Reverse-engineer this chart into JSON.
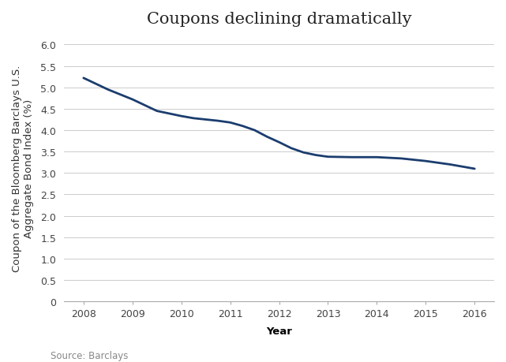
{
  "title": "Coupons declining dramatically",
  "xlabel": "Year",
  "ylabel": "Coupon of the Bloomberg Barclays U.S.\nAggregate Bond Index (%)",
  "source_text": "Source: Barclays",
  "x": [
    2008,
    2008.5,
    2009,
    2009.5,
    2010,
    2010.25,
    2010.5,
    2010.75,
    2011,
    2011.25,
    2011.5,
    2011.75,
    2012,
    2012.25,
    2012.5,
    2012.75,
    2013,
    2013.5,
    2014,
    2014.5,
    2015,
    2015.5,
    2016
  ],
  "y": [
    5.22,
    4.95,
    4.72,
    4.45,
    4.33,
    4.28,
    4.25,
    4.22,
    4.18,
    4.1,
    4.0,
    3.85,
    3.72,
    3.58,
    3.48,
    3.42,
    3.38,
    3.37,
    3.37,
    3.34,
    3.28,
    3.2,
    3.1
  ],
  "line_color": "#1b3d6e",
  "line_width": 2.0,
  "ylim": [
    0,
    6.25
  ],
  "yticks": [
    0,
    0.5,
    1.0,
    1.5,
    2.0,
    2.5,
    3.0,
    3.5,
    4.0,
    4.5,
    5.0,
    5.5,
    6.0
  ],
  "xticks": [
    2008,
    2009,
    2010,
    2011,
    2012,
    2013,
    2014,
    2015,
    2016
  ],
  "xlim": [
    2007.6,
    2016.4
  ],
  "background_color": "#ffffff",
  "grid_color": "#cccccc",
  "title_fontsize": 15,
  "label_fontsize": 9.5,
  "tick_fontsize": 9,
  "source_fontsize": 8.5
}
